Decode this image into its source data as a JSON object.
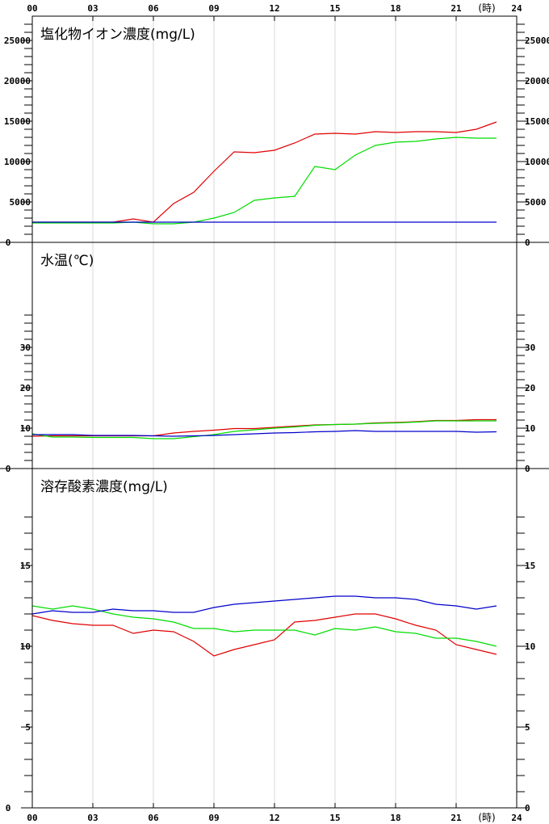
{
  "chart_data": {
    "type": "line",
    "x_ticks": [
      "00",
      "03",
      "06",
      "09",
      "12",
      "15",
      "18",
      "21",
      "24"
    ],
    "x_unit": "(時)",
    "x_range": [
      0,
      24
    ],
    "grid": "vertical",
    "panels": [
      {
        "title": "塩化物イオン濃度(mg/L)",
        "ylim": [
          0,
          28000
        ],
        "y_ticks": [
          0,
          5000,
          10000,
          15000,
          20000,
          25000
        ],
        "y_minor_step": 1000,
        "series": [
          {
            "color": "#e00000",
            "x": [
              0,
              1,
              2,
              3,
              4,
              5,
              6,
              7,
              8,
              9,
              10,
              11,
              12,
              13,
              14,
              15,
              16,
              17,
              18,
              19,
              20,
              21,
              22,
              23
            ],
            "values": [
              2500,
              2500,
              2500,
              2500,
              2500,
              2900,
              2500,
              4800,
              6200,
              8800,
              11200,
              11100,
              11400,
              12300,
              13400,
              13500,
              13400,
              13700,
              13600,
              13700,
              13700,
              13600,
              14000,
              14900
            ]
          },
          {
            "color": "#00dd00",
            "x": [
              0,
              1,
              2,
              3,
              4,
              5,
              6,
              7,
              8,
              9,
              10,
              11,
              12,
              13,
              14,
              15,
              16,
              17,
              18,
              19,
              20,
              21,
              22,
              23
            ],
            "values": [
              2400,
              2400,
              2400,
              2400,
              2400,
              2500,
              2300,
              2300,
              2500,
              3000,
              3700,
              5200,
              5500,
              5700,
              9400,
              9000,
              10800,
              12000,
              12400,
              12500,
              12800,
              13000,
              12900,
              12900
            ]
          },
          {
            "color": "#0000cc",
            "x": [
              0,
              23
            ],
            "values": [
              2500,
              2500
            ]
          }
        ]
      },
      {
        "title": "水温(℃)",
        "ylim": [
          0,
          56
        ],
        "y_ticks": [
          0,
          10,
          20,
          30
        ],
        "y_minor_step": 2,
        "minor_max": 38,
        "series": [
          {
            "color": "#e00000",
            "x": [
              0,
              1,
              2,
              3,
              4,
              5,
              6,
              7,
              8,
              9,
              10,
              11,
              12,
              13,
              14,
              15,
              16,
              17,
              18,
              19,
              20,
              21,
              22,
              23
            ],
            "values": [
              8.0,
              8.1,
              8.1,
              8.1,
              8.1,
              8.1,
              8.1,
              8.8,
              9.2,
              9.5,
              9.9,
              9.9,
              10.2,
              10.5,
              10.8,
              10.9,
              11.0,
              11.3,
              11.4,
              11.6,
              11.9,
              11.9,
              12.1,
              12.1
            ]
          },
          {
            "color": "#00dd00",
            "x": [
              0,
              1,
              2,
              3,
              4,
              5,
              6,
              7,
              8,
              9,
              10,
              11,
              12,
              13,
              14,
              15,
              16,
              17,
              18,
              19,
              20,
              21,
              22,
              23
            ],
            "values": [
              8.6,
              7.8,
              7.8,
              7.7,
              7.7,
              7.7,
              7.4,
              7.4,
              7.9,
              8.4,
              9.2,
              9.6,
              10.0,
              10.3,
              10.7,
              10.9,
              11.0,
              11.2,
              11.3,
              11.5,
              11.8,
              11.8,
              11.8,
              11.8
            ]
          },
          {
            "color": "#0000cc",
            "x": [
              0,
              1,
              2,
              3,
              4,
              5,
              6,
              7,
              8,
              9,
              10,
              11,
              12,
              13,
              14,
              15,
              16,
              17,
              18,
              19,
              20,
              21,
              22,
              23
            ],
            "values": [
              8.4,
              8.4,
              8.4,
              8.2,
              8.2,
              8.2,
              8.1,
              8.0,
              8.1,
              8.2,
              8.4,
              8.6,
              8.8,
              8.9,
              9.1,
              9.2,
              9.4,
              9.2,
              9.2,
              9.2,
              9.2,
              9.2,
              9.0,
              9.1
            ]
          }
        ]
      },
      {
        "title": "溶存酸素濃度(mg/L)",
        "ylim": [
          0,
          21
        ],
        "y_ticks": [
          0,
          5,
          10,
          15
        ],
        "y_minor_step": 1,
        "minor_max": 18,
        "series": [
          {
            "color": "#e00000",
            "x": [
              0,
              1,
              2,
              3,
              4,
              5,
              6,
              7,
              8,
              9,
              10,
              11,
              12,
              13,
              14,
              15,
              16,
              17,
              18,
              19,
              20,
              21,
              22,
              23
            ],
            "values": [
              11.9,
              11.6,
              11.4,
              11.3,
              11.3,
              10.8,
              11.0,
              10.9,
              10.3,
              9.4,
              9.8,
              10.1,
              10.4,
              11.5,
              11.6,
              11.8,
              12.0,
              12.0,
              11.7,
              11.3,
              11.0,
              10.1,
              9.8,
              9.5
            ]
          },
          {
            "color": "#00dd00",
            "x": [
              0,
              1,
              2,
              3,
              4,
              5,
              6,
              7,
              8,
              9,
              10,
              11,
              12,
              13,
              14,
              15,
              16,
              17,
              18,
              19,
              20,
              21,
              22,
              23
            ],
            "values": [
              12.5,
              12.3,
              12.5,
              12.3,
              12.0,
              11.8,
              11.7,
              11.5,
              11.1,
              11.1,
              10.9,
              11.0,
              11.0,
              11.0,
              10.7,
              11.1,
              11.0,
              11.2,
              10.9,
              10.8,
              10.5,
              10.5,
              10.3,
              10.0
            ]
          },
          {
            "color": "#0000cc",
            "x": [
              0,
              1,
              2,
              3,
              4,
              5,
              6,
              7,
              8,
              9,
              10,
              11,
              12,
              13,
              14,
              15,
              16,
              17,
              18,
              19,
              20,
              21,
              22,
              23
            ],
            "values": [
              12.0,
              12.2,
              12.1,
              12.1,
              12.3,
              12.2,
              12.2,
              12.1,
              12.1,
              12.4,
              12.6,
              12.7,
              12.8,
              12.9,
              13.0,
              13.1,
              13.1,
              13.0,
              13.0,
              12.9,
              12.6,
              12.5,
              12.3,
              12.5
            ]
          }
        ]
      }
    ]
  }
}
